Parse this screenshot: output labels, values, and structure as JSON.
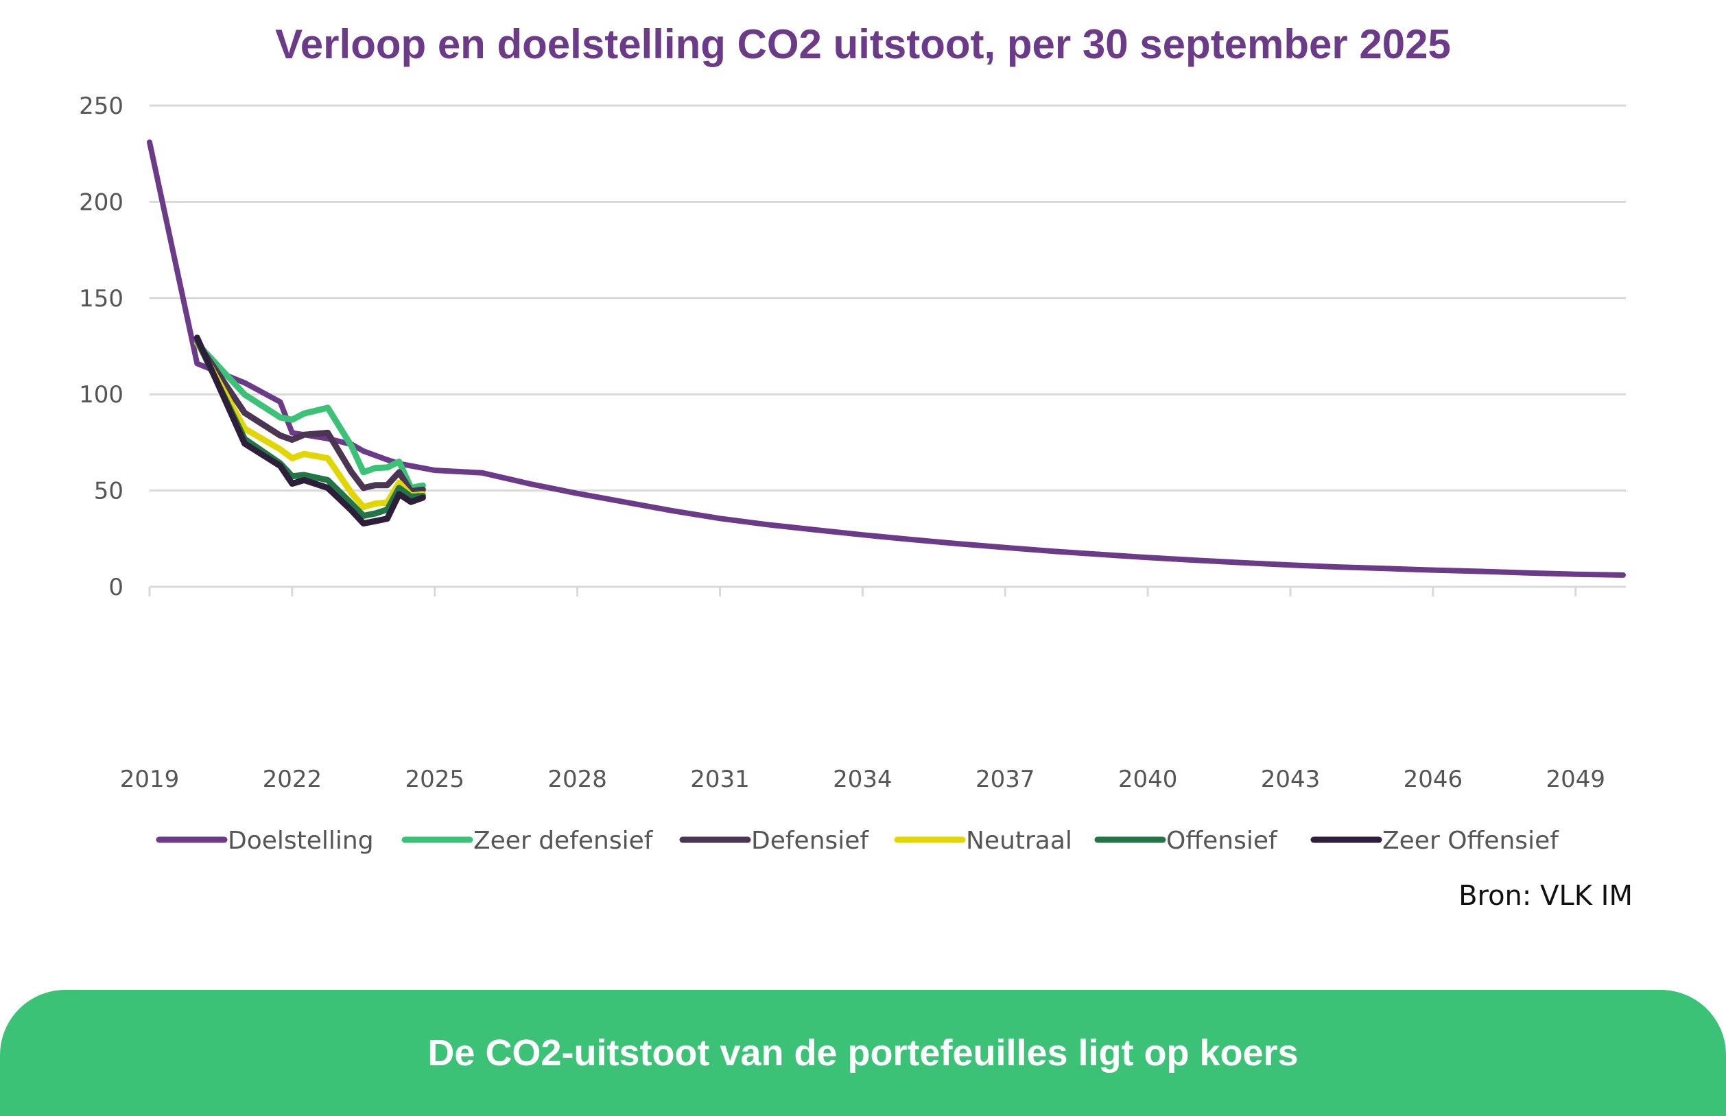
{
  "chart_data": {
    "type": "line",
    "title": "Verloop en doelstelling CO2 uitstoot, per 30 september 2025",
    "xlabel": "",
    "ylabel": "",
    "xlim": [
      2019,
      2050
    ],
    "ylim": [
      0,
      250
    ],
    "x_ticks": [
      "2019",
      "2022",
      "2025",
      "2028",
      "2031",
      "2034",
      "2037",
      "2040",
      "2043",
      "2046",
      "2049"
    ],
    "y_ticks": [
      "0",
      "50",
      "100",
      "150",
      "200",
      "250"
    ],
    "grid": "horizontal",
    "legend_position": "bottom",
    "series": [
      {
        "name": "Doelstelling",
        "color": "#6b3a88",
        "x": [
          2019,
          2020,
          2021,
          2021.75,
          2022,
          2022.75,
          2023.25,
          2023.5,
          2024,
          2024.25,
          2025,
          2026,
          2027,
          2028,
          2029,
          2030,
          2031,
          2032,
          2033,
          2034,
          2035,
          2036,
          2037,
          2038,
          2039,
          2040,
          2041,
          2042,
          2043,
          2044,
          2045,
          2046,
          2047,
          2048,
          2049,
          2050
        ],
        "y": [
          231,
          116,
          106,
          96,
          80,
          77,
          74,
          70.5,
          66,
          64,
          60.5,
          59.2,
          53.5,
          48.5,
          44,
          39.5,
          35.5,
          32.3,
          29.6,
          27,
          24.6,
          22.4,
          20.4,
          18.5,
          16.8,
          15.2,
          13.8,
          12.5,
          11.3,
          10.3,
          9.5,
          8.7,
          8,
          7.2,
          6.5,
          6.1
        ]
      },
      {
        "name": "Zeer defensief",
        "color": "#3cc277",
        "x": [
          2020,
          2021,
          2021.75,
          2022,
          2022.25,
          2022.75,
          2023.25,
          2023.5,
          2023.75,
          2024,
          2024.25,
          2024.5,
          2024.75
        ],
        "y": [
          126.5,
          99.9,
          88,
          86.8,
          90,
          93,
          73,
          59.5,
          61.7,
          62,
          65,
          51.4,
          52.6
        ]
      },
      {
        "name": "Defensief",
        "color": "#4a3552",
        "x": [
          2020,
          2021,
          2021.75,
          2022,
          2022.25,
          2022.75,
          2023.25,
          2023.5,
          2023.75,
          2024,
          2024.25,
          2024.5,
          2024.75
        ],
        "y": [
          127,
          90.4,
          78.6,
          76.4,
          79,
          80,
          59.5,
          51.4,
          52.8,
          52.8,
          59.5,
          49.6,
          50.5
        ]
      },
      {
        "name": "Neutraal",
        "color": "#e2d600",
        "x": [
          2020,
          2021,
          2021.75,
          2022,
          2022.25,
          2022.75,
          2023.25,
          2023.5,
          2023.75,
          2024,
          2024.25,
          2024.5,
          2024.75
        ],
        "y": [
          127,
          82.2,
          71.4,
          66.8,
          69,
          66.8,
          48.7,
          41.4,
          43.2,
          43.8,
          54.1,
          47.4,
          48.1
        ]
      },
      {
        "name": "Offensief",
        "color": "#217547",
        "x": [
          2020,
          2021,
          2021.75,
          2022,
          2022.25,
          2022.75,
          2023.25,
          2023.5,
          2023.75,
          2024,
          2024.25,
          2024.5,
          2024.75
        ],
        "y": [
          128,
          76.8,
          64.1,
          57.4,
          58.1,
          55.4,
          43.2,
          36.9,
          38.1,
          40.1,
          51.4,
          46.8,
          47.2
        ]
      },
      {
        "name": "Zeer Offensief",
        "color": "#2d1f3a",
        "x": [
          2020,
          2021,
          2021.75,
          2022,
          2022.25,
          2022.75,
          2023.25,
          2023.5,
          2023.75,
          2024,
          2024.25,
          2024.5,
          2024.75
        ],
        "y": [
          129.4,
          74.4,
          62.8,
          53.6,
          55.4,
          51.4,
          39.6,
          32.9,
          34.1,
          35.4,
          48.1,
          44.1,
          46.3
        ]
      }
    ]
  },
  "source": "Bron: VLK IM",
  "banner": "De CO2-uitstoot van de portefeuilles ligt op koers"
}
